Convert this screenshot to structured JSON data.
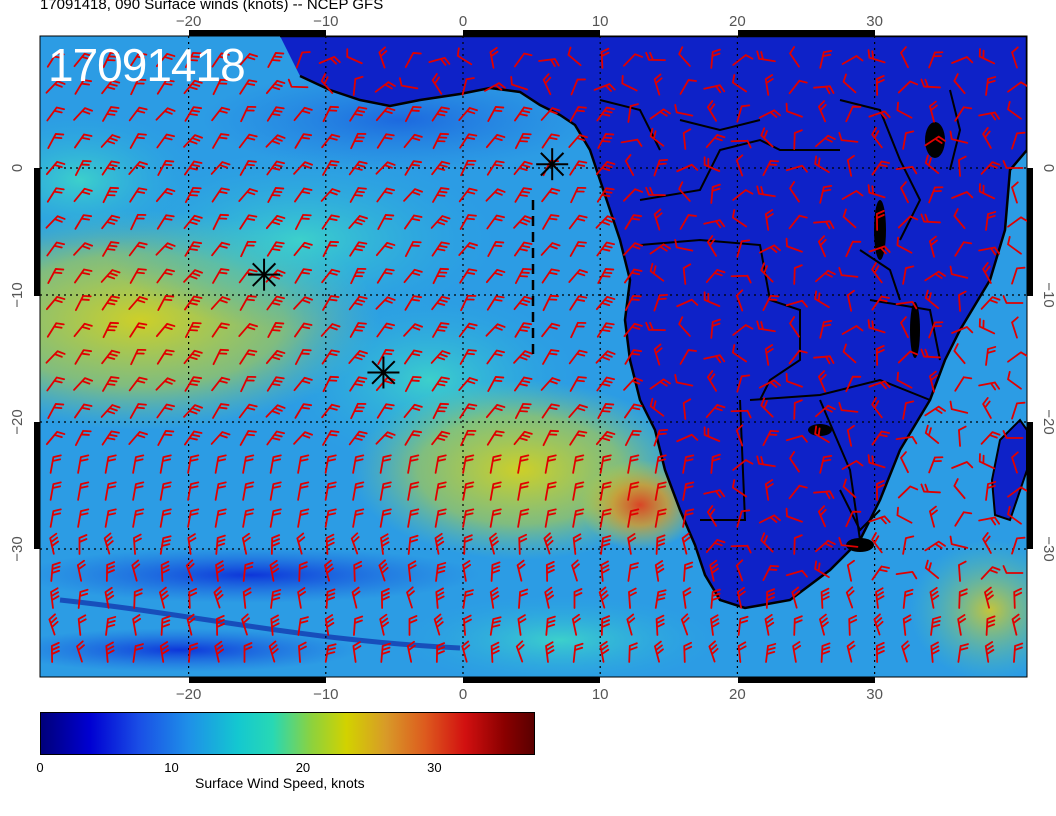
{
  "title": "17091418, 090 Surface winds (knots) -- NCEP GFS",
  "stamp": "17091418",
  "map": {
    "lon_ticks_top": [
      "−20",
      "−10",
      "0",
      "10",
      "20",
      "30"
    ],
    "lon_ticks_bottom": [
      "−20",
      "−10",
      "0",
      "10",
      "20",
      "30"
    ],
    "lat_ticks": [
      "0",
      "−10",
      "−20",
      "−30"
    ],
    "lon_values": [
      -20,
      -10,
      0,
      10,
      20,
      30
    ],
    "lat_values": [
      0,
      -10,
      -20,
      -30
    ],
    "barb_color": "#e00000",
    "markers": [
      {
        "symbol": "asterisk",
        "lon": 6.5,
        "lat": 0.3
      },
      {
        "symbol": "asterisk",
        "lon": -14.5,
        "lat": -8.4
      },
      {
        "symbol": "asterisk",
        "lon": -5.8,
        "lat": -16.1
      }
    ]
  },
  "colorbar": {
    "ticks": [
      "0",
      "10",
      "20",
      "30"
    ],
    "tick_values": [
      0,
      10,
      20,
      30
    ],
    "max": 37.5,
    "label": "Surface Wind Speed, knots"
  }
}
